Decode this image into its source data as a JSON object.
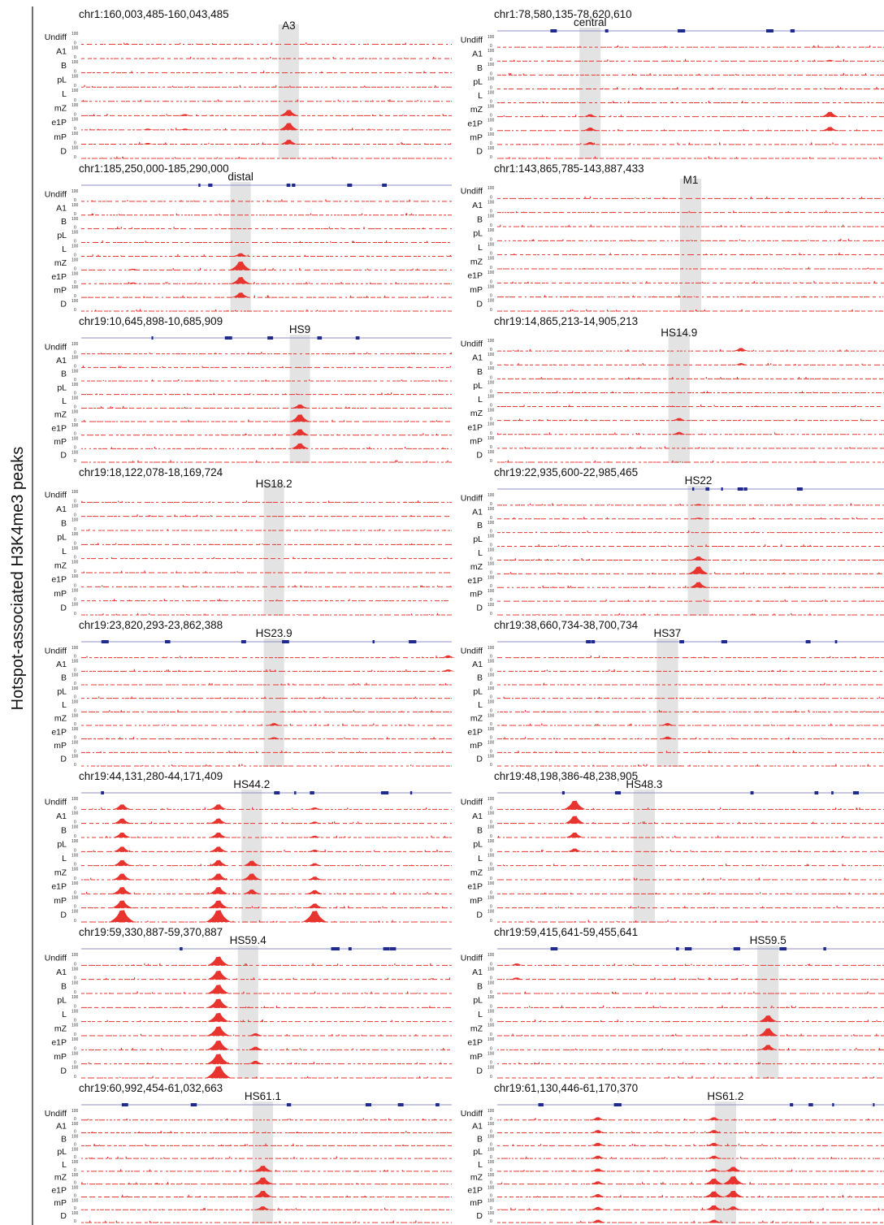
{
  "figure": {
    "side_label": "Hotspot-associated H3K4me3 peaks",
    "track_labels": [
      "Undiff",
      "A1",
      "B",
      "pL",
      "L",
      "mZ",
      "e1P",
      "mP",
      "D"
    ],
    "scale_max_label": "100",
    "scale_min_label": "0",
    "colors": {
      "signal": "#e8342f",
      "highlight": "#e3e3e3",
      "gene": "#1f2a8c",
      "gene_line": "#8e8ecf",
      "text": "#111111"
    }
  },
  "chart_data": {
    "type": "genome-browser-tracks",
    "y_range_per_track": [
      0,
      100
    ],
    "tracks": [
      "Undiff",
      "A1",
      "B",
      "pL",
      "L",
      "mZ",
      "e1P",
      "mP",
      "D"
    ],
    "panels": [
      {
        "region": "chr1:160,003,485-160,043,485",
        "peak_label": "A3",
        "start": 160003485,
        "end": 160043485,
        "highlight_center_frac": 0.56,
        "gene_track": false,
        "peaks": [
          {
            "x": 0.56,
            "tracks": [
              5,
              6,
              7
            ],
            "heights": [
              45,
              55,
              35
            ]
          },
          {
            "x": 0.28,
            "tracks": [
              5,
              6
            ],
            "heights": [
              12,
              10
            ]
          },
          {
            "x": 0.18,
            "tracks": [
              6,
              7
            ],
            "heights": [
              8,
              7
            ]
          }
        ]
      },
      {
        "region": "chr1:78,580,135-78,620,610",
        "peak_label": "central",
        "start": 78580135,
        "end": 78620610,
        "highlight_center_frac": 0.24,
        "gene_track": true,
        "peaks": [
          {
            "x": 0.24,
            "tracks": [
              5,
              6,
              7
            ],
            "heights": [
              20,
              25,
              20
            ]
          },
          {
            "x": 0.86,
            "tracks": [
              1,
              5,
              6
            ],
            "heights": [
              10,
              40,
              30
            ]
          }
        ]
      },
      {
        "region": "chr1:185,250,000-185,290,000",
        "peak_label": "distal",
        "start": 185250000,
        "end": 185290000,
        "highlight_center_frac": 0.43,
        "gene_track": true,
        "peaks": [
          {
            "x": 0.43,
            "tracks": [
              4,
              5,
              6,
              7
            ],
            "heights": [
              25,
              70,
              55,
              40
            ]
          },
          {
            "x": 0.14,
            "tracks": [
              5,
              6
            ],
            "heights": [
              10,
              10
            ]
          }
        ]
      },
      {
        "region": "chr1:143,865,785-143,887,433",
        "peak_label": "M1",
        "start": 143865785,
        "end": 143887433,
        "highlight_center_frac": 0.5,
        "gene_track": false,
        "peaks": []
      },
      {
        "region": "chr19:10,645,898-10,685,909",
        "peak_label": "HS9",
        "start": 10645898,
        "end": 10685909,
        "highlight_center_frac": 0.59,
        "gene_track": true,
        "peaks": [
          {
            "x": 0.59,
            "tracks": [
              4,
              5,
              6,
              7
            ],
            "heights": [
              30,
              60,
              50,
              45
            ]
          }
        ]
      },
      {
        "region": "chr19:14,865,213-14,905,213",
        "peak_label": "HS14.9",
        "start": 14865213,
        "end": 14905213,
        "highlight_center_frac": 0.47,
        "gene_track": false,
        "peaks": [
          {
            "x": 0.47,
            "tracks": [
              5,
              6
            ],
            "heights": [
              20,
              20
            ]
          },
          {
            "x": 0.63,
            "tracks": [
              0,
              1
            ],
            "heights": [
              25,
              15
            ]
          }
        ]
      },
      {
        "region": "chr19:18,122,078-18,169,724",
        "peak_label": "HS18.2",
        "start": 18122078,
        "end": 18169724,
        "highlight_center_frac": 0.52,
        "gene_track": false,
        "peaks": []
      },
      {
        "region": "chr19:22,935,600-22,985,465",
        "peak_label": "HS22",
        "start": 22935600,
        "end": 22985465,
        "highlight_center_frac": 0.52,
        "gene_track": true,
        "peaks": [
          {
            "x": 0.52,
            "tracks": [
              0,
              1,
              4,
              5,
              6
            ],
            "heights": [
              10,
              10,
              30,
              60,
              45
            ]
          }
        ]
      },
      {
        "region": "chr19:23,820,293-23,862,388",
        "peak_label": "HS23.9",
        "start": 23820293,
        "end": 23862388,
        "highlight_center_frac": 0.52,
        "gene_track": true,
        "peaks": [
          {
            "x": 0.52,
            "tracks": [
              5,
              6
            ],
            "heights": [
              20,
              15
            ]
          },
          {
            "x": 0.99,
            "tracks": [
              0,
              1
            ],
            "heights": [
              20,
              15
            ]
          }
        ]
      },
      {
        "region": "chr19:38,660,734-38,700,734",
        "peak_label": "HS37",
        "start": 38660734,
        "end": 38700734,
        "highlight_center_frac": 0.44,
        "gene_track": true,
        "peaks": [
          {
            "x": 0.44,
            "tracks": [
              5,
              6
            ],
            "heights": [
              20,
              20
            ]
          }
        ]
      },
      {
        "region": "chr19:44,131,280-44,171,409",
        "peak_label": "HS44.2",
        "start": 44131280,
        "end": 44171409,
        "highlight_center_frac": 0.46,
        "gene_track": true,
        "peaks": [
          {
            "x": 0.11,
            "tracks": [
              0,
              1,
              2,
              3,
              4,
              5,
              6,
              7,
              8
            ],
            "heights": [
              40,
              40,
              40,
              40,
              45,
              50,
              55,
              60,
              95
            ]
          },
          {
            "x": 0.37,
            "tracks": [
              0,
              1,
              2,
              3,
              4,
              5,
              6,
              7,
              8
            ],
            "heights": [
              40,
              40,
              40,
              40,
              45,
              50,
              55,
              60,
              95
            ]
          },
          {
            "x": 0.46,
            "tracks": [
              4,
              5,
              6
            ],
            "heights": [
              40,
              50,
              35
            ]
          },
          {
            "x": 0.63,
            "tracks": [
              0,
              1,
              2,
              3,
              4,
              5,
              6,
              7,
              8
            ],
            "heights": [
              15,
              15,
              15,
              15,
              20,
              25,
              30,
              35,
              90
            ]
          }
        ]
      },
      {
        "region": "chr19:48,198,386-48,238,905",
        "peak_label": "HS48.3",
        "start": 48198386,
        "end": 48238905,
        "highlight_center_frac": 0.38,
        "gene_track": true,
        "peaks": [
          {
            "x": 0.2,
            "tracks": [
              0,
              1,
              2,
              3
            ],
            "heights": [
              70,
              60,
              40,
              25
            ]
          }
        ]
      },
      {
        "region": "chr19:59,330,887-59,370,887",
        "peak_label": "HS59.4",
        "start": 59330887,
        "end": 59370887,
        "highlight_center_frac": 0.45,
        "gene_track": true,
        "peaks": [
          {
            "x": 0.37,
            "tracks": [
              0,
              1,
              2,
              3,
              4,
              5,
              6,
              7,
              8
            ],
            "heights": [
              70,
              70,
              70,
              70,
              70,
              75,
              75,
              80,
              95
            ]
          },
          {
            "x": 0.47,
            "tracks": [
              5,
              6,
              7
            ],
            "heights": [
              20,
              25,
              25
            ]
          }
        ]
      },
      {
        "region": "chr19:59,415,641-59,455,641",
        "peak_label": "HS59.5",
        "start": 59415641,
        "end": 59455641,
        "highlight_center_frac": 0.7,
        "gene_track": true,
        "peaks": [
          {
            "x": 0.7,
            "tracks": [
              4,
              5,
              6
            ],
            "heights": [
              50,
              60,
              40
            ]
          },
          {
            "x": 0.05,
            "tracks": [
              0,
              1
            ],
            "heights": [
              15,
              15
            ]
          }
        ]
      },
      {
        "region": "chr19:60,992,454-61,032,663",
        "peak_label": "HS61.1",
        "start": 60992454,
        "end": 61032663,
        "highlight_center_frac": 0.49,
        "gene_track": true,
        "peaks": [
          {
            "x": 0.49,
            "tracks": [
              4,
              5,
              6,
              7
            ],
            "heights": [
              50,
              60,
              55,
              30
            ]
          }
        ]
      },
      {
        "region": "chr19:61,130,446-61,170,370",
        "peak_label": "HS61.2",
        "start": 61130446,
        "end": 61170370,
        "highlight_center_frac": 0.59,
        "gene_track": true,
        "peaks": [
          {
            "x": 0.26,
            "tracks": [
              0,
              1,
              2,
              3,
              4,
              5,
              6,
              7,
              8
            ],
            "heights": [
              25,
              25,
              25,
              25,
              25,
              25,
              25,
              25,
              25
            ]
          },
          {
            "x": 0.56,
            "tracks": [
              0,
              1,
              2,
              3,
              4,
              5,
              6,
              7,
              8
            ],
            "heights": [
              25,
              25,
              25,
              25,
              25,
              50,
              50,
              40,
              25
            ]
          },
          {
            "x": 0.61,
            "tracks": [
              4,
              5,
              6,
              7
            ],
            "heights": [
              40,
              70,
              55,
              30
            ]
          }
        ]
      }
    ]
  }
}
